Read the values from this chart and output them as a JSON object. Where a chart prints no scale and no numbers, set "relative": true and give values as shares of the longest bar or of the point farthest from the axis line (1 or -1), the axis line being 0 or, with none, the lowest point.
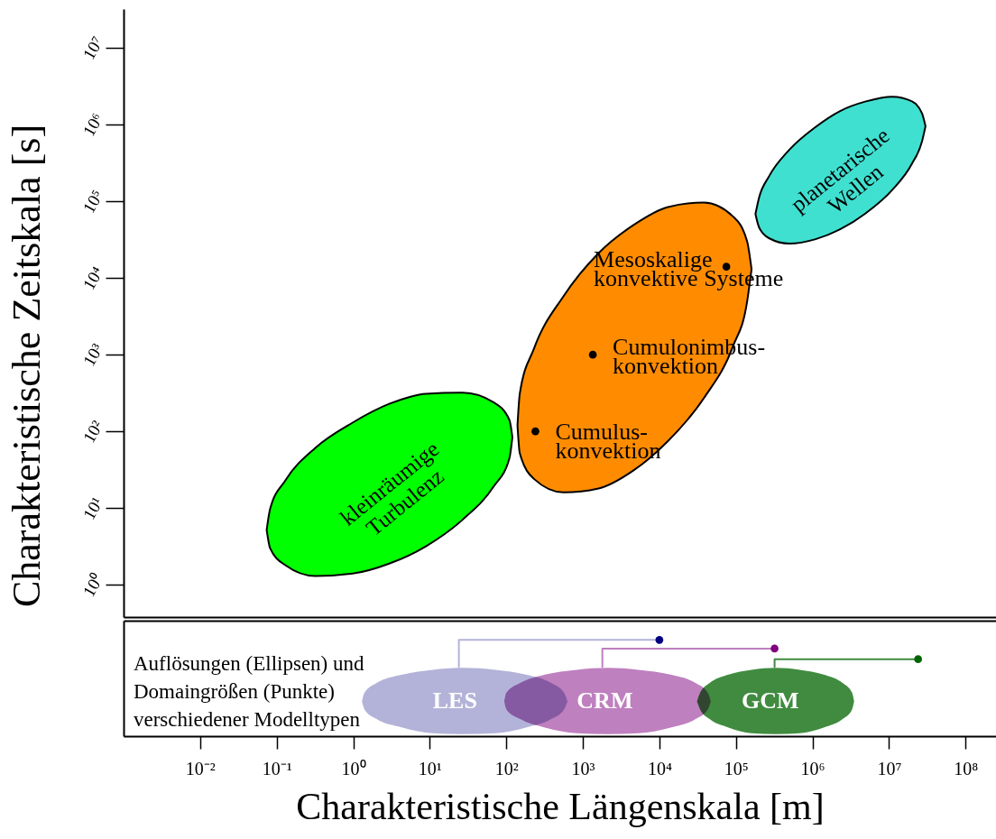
{
  "chart_data": [
    {
      "type": "area",
      "ylabel": "Charakteristische Zeitskala [s]",
      "log": "xy",
      "grid": false,
      "tick_labels": "y",
      "xlim": [
        0.001,
        250000000
      ],
      "ylim": [
        0.38,
        32000000
      ],
      "yticks": [
        {
          "value": 1,
          "label": "10⁰"
        },
        {
          "value": 10,
          "label": "10¹"
        },
        {
          "value": 100,
          "label": "10²"
        },
        {
          "value": 1000,
          "label": "10³"
        },
        {
          "value": 10000,
          "label": "10⁴"
        },
        {
          "value": 100000,
          "label": "10⁵"
        },
        {
          "value": 1000000,
          "label": "10⁶"
        },
        {
          "value": 10000000,
          "label": "10⁷"
        }
      ],
      "series": [
        {
          "color": "#00ff00",
          "x": [
            0.074,
            0.082,
            0.13,
            0.32,
            0.98,
            3.0,
            9.0,
            27,
            68,
            110,
            120
          ],
          "values": [
            null,
            null,
            null,
            null,
            null,
            null,
            null,
            null,
            null,
            null,
            null
          ],
          "lower": [
            5.2,
            3.0,
            1.8,
            1.3,
            1.4,
            1.9,
            3.2,
            7.1,
            19,
            45,
            84
          ],
          "upper": [
            5.2,
            9.7,
            23,
            61,
            130,
            230,
            310,
            320,
            240,
            140,
            84
          ]
        },
        {
          "color": "#ff8c00",
          "x": [
            140,
            150,
            230,
            560,
            1600,
            4600,
            13000,
            38000,
            92000,
            140000,
            160000
          ],
          "values": [
            null,
            null,
            null,
            null,
            null,
            null,
            null,
            null,
            null,
            null,
            null
          ],
          "lower": [
            120,
            52,
            24,
            16,
            18,
            31,
            75,
            270,
            1300,
            4900,
            13000
          ],
          "upper": [
            120,
            310,
            1200,
            5800,
            21000,
            49000,
            84000,
            96000,
            63000,
            30000,
            13000
          ]
        },
        {
          "color": "#40e0d0",
          "x": [
            180000,
            200000,
            270000,
            500000,
            1100000,
            2300000,
            5000000,
            11000000,
            20000000,
            27000000,
            30000000
          ],
          "values": [
            null,
            null,
            null,
            null,
            null,
            null,
            null,
            null,
            null,
            null,
            null
          ],
          "lower": [
            68000,
            46000,
            33000,
            28000,
            32000,
            43000,
            70000,
            140000,
            310000,
            600000,
            950000
          ],
          "upper": [
            68000,
            110000,
            210000,
            470000,
            930000,
            1500000,
            2000000,
            2300000,
            2000000,
            1400000,
            950000
          ]
        },
        {
          "type": "scatter",
          "marker": "circle",
          "color": "#000000",
          "x": [
            240,
            1350,
            75000
          ],
          "values": [
            100,
            1000,
            14000
          ]
        }
      ],
      "annotations": [
        {
          "text": "Cumulus-\nkonvektion",
          "x": 240,
          "y": 100
        },
        {
          "text": "Cumulonimbus-\nkonvektion",
          "x": 1350,
          "y": 1000
        },
        {
          "text": "Mesoskalige\nkonvektive Systeme",
          "x": 75000,
          "y": 14000
        },
        "kleinräumige\nTurbulenz",
        "planetarische\nWellen"
      ]
    },
    {
      "type": "area",
      "relative": true,
      "xlabel": "Charakteristische Längenskala [m]",
      "log": "x",
      "grid": false,
      "tick_labels": "x",
      "xlim": [
        0.001,
        250000000
      ],
      "xticks": [
        {
          "value": 0.01,
          "label": "10⁻²"
        },
        {
          "value": 0.1,
          "label": "10⁻¹"
        },
        {
          "value": 1,
          "label": "10⁰"
        },
        {
          "value": 10,
          "label": "10¹"
        },
        {
          "value": 100,
          "label": "10²"
        },
        {
          "value": 1000,
          "label": "10³"
        },
        {
          "value": 10000,
          "label": "10⁴"
        },
        {
          "value": 100000,
          "label": "10⁵"
        },
        {
          "value": 1000000,
          "label": "10⁶"
        },
        {
          "value": 10000000,
          "label": "10⁷"
        },
        {
          "value": 100000000,
          "label": "10⁸"
        }
      ],
      "series": [
        {
          "color": "#b3b3d9",
          "x": [
            1.3,
            1.4,
            2.0,
            4.4,
            11,
            28,
            72,
            180,
            390,
            570,
            630
          ],
          "values": [
            null,
            null,
            null,
            null,
            null,
            null,
            null,
            null,
            null,
            null,
            null
          ],
          "lower": [
            0.36,
            0.28,
            0.18,
            0.09,
            0.03,
            0.02,
            0.03,
            0.09,
            0.18,
            0.28,
            0.36
          ],
          "upper": [
            0.36,
            0.45,
            0.55,
            0.64,
            0.69,
            0.71,
            0.69,
            0.64,
            0.55,
            0.45,
            0.36
          ]
        },
        {
          "color": "#bf80bf",
          "x": [
            94,
            100,
            150,
            320,
            830,
            2100,
            5300,
            14000,
            30000,
            43000,
            47000
          ],
          "values": [
            null,
            null,
            null,
            null,
            null,
            null,
            null,
            null,
            null,
            null,
            null
          ],
          "lower": [
            0.36,
            0.28,
            0.18,
            0.09,
            0.03,
            0.02,
            0.03,
            0.09,
            0.18,
            0.28,
            0.36
          ],
          "upper": [
            0.36,
            0.45,
            0.55,
            0.64,
            0.69,
            0.71,
            0.69,
            0.64,
            0.55,
            0.45,
            0.36
          ]
        },
        {
          "color": "#408b40",
          "x": [
            31000,
            34000,
            45000,
            80000,
            160000,
            330000,
            680000,
            1400000,
            2500000,
            3300000,
            3500000
          ],
          "values": [
            null,
            null,
            null,
            null,
            null,
            null,
            null,
            null,
            null,
            null,
            null
          ],
          "lower": [
            0.36,
            0.28,
            0.18,
            0.09,
            0.03,
            0.02,
            0.03,
            0.09,
            0.18,
            0.28,
            0.36
          ],
          "upper": [
            0.36,
            0.45,
            0.55,
            0.64,
            0.69,
            0.71,
            0.69,
            0.64,
            0.55,
            0.45,
            0.36
          ]
        },
        {
          "type": "line",
          "color": "#b3b3d9",
          "x": [
            24,
            24,
            10000
          ],
          "values": [
            0.72,
            1,
            1
          ]
        },
        {
          "type": "scatter",
          "marker": "circle",
          "color": "#000080",
          "x": [
            10000
          ],
          "values": [
            1
          ]
        },
        {
          "type": "line",
          "color": "#bf80bf",
          "x": [
            1800,
            1800,
            320000
          ],
          "values": [
            0.72,
            0.91,
            0.91
          ]
        },
        {
          "type": "scatter",
          "marker": "circle",
          "color": "#800080",
          "x": [
            320000
          ],
          "values": [
            0.91
          ]
        },
        {
          "type": "line",
          "color": "#408b40",
          "x": [
            320000,
            320000,
            24000000
          ],
          "values": [
            0.72,
            0.8,
            0.8
          ]
        },
        {
          "type": "scatter",
          "marker": "circle",
          "color": "#006400",
          "x": [
            24000000
          ],
          "values": [
            0.8
          ]
        }
      ],
      "annotations": [
        "Auflösungen (Ellipsen) und\nDomaingrößen (Punkte)\nverschiedener Modelltypen",
        "LES",
        "CRM",
        "GCM"
      ]
    }
  ]
}
